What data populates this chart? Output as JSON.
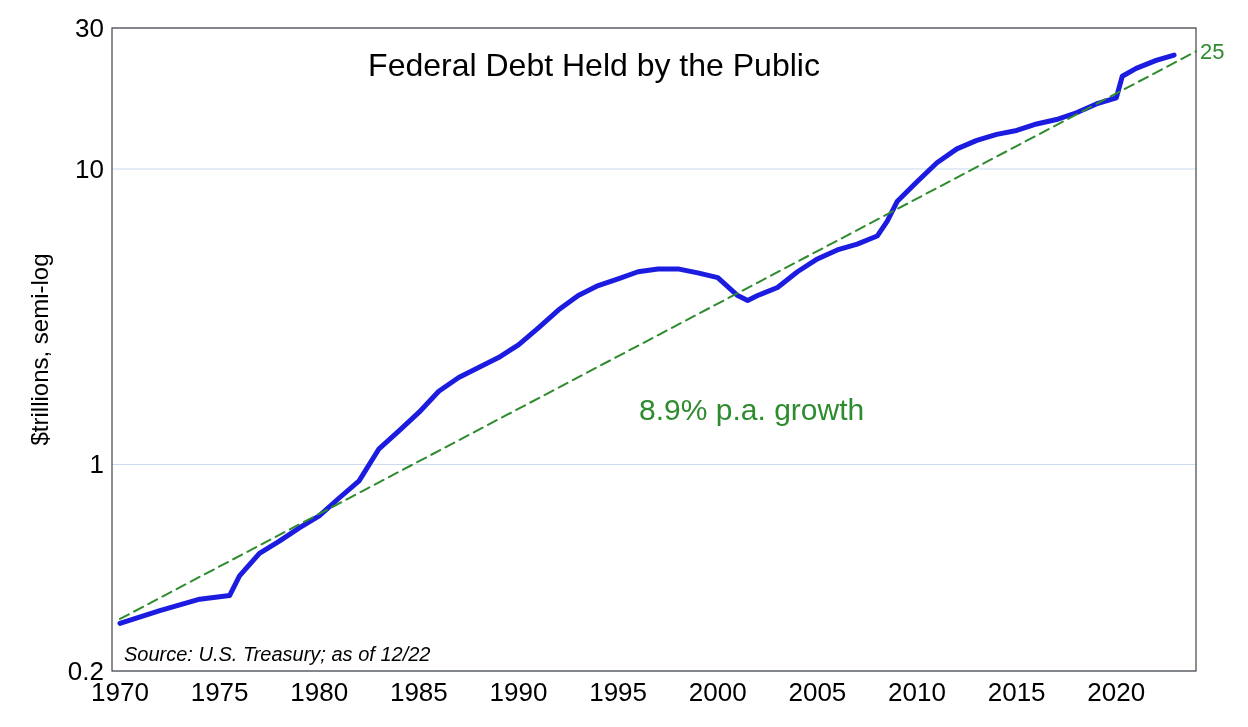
{
  "chart_data": {
    "type": "line",
    "title": "Federal Debt Held by the Public",
    "ylabel": "$trillions, semi-log",
    "log": "y",
    "grid": "y",
    "xlim": [
      1969.6,
      2024
    ],
    "xticks": [
      1970,
      1975,
      1980,
      1985,
      1990,
      1995,
      2000,
      2005,
      2010,
      2015,
      2020
    ],
    "ylim": [
      0.2,
      30
    ],
    "yticks": [
      0.2,
      1,
      10,
      30
    ],
    "series": [
      {
        "color": "#1c1ce0",
        "line_style": "solid",
        "x": [
          1970,
          1972,
          1974,
          1975.5,
          1976,
          1977,
          1978,
          1979,
          1980,
          1981,
          1982,
          1983,
          1984,
          1985,
          1986,
          1987,
          1988,
          1989,
          1990,
          1991,
          1992,
          1993,
          1994,
          1995,
          1996,
          1997,
          1998,
          1999,
          2000,
          2001,
          2001.5,
          2002,
          2003,
          2004,
          2005,
          2006,
          2007,
          2008,
          2008.5,
          2009,
          2010,
          2011,
          2012,
          2013,
          2014,
          2015,
          2016,
          2017,
          2018,
          2019,
          2020,
          2020.3,
          2021,
          2022,
          2022.9
        ],
        "values": [
          0.29,
          0.32,
          0.35,
          0.36,
          0.42,
          0.5,
          0.55,
          0.61,
          0.67,
          0.77,
          0.88,
          1.13,
          1.3,
          1.5,
          1.77,
          1.97,
          2.13,
          2.3,
          2.54,
          2.9,
          3.33,
          3.73,
          4.03,
          4.25,
          4.49,
          4.59,
          4.59,
          4.45,
          4.29,
          3.73,
          3.59,
          3.73,
          3.97,
          4.49,
          4.96,
          5.32,
          5.57,
          5.93,
          6.65,
          7.76,
          9.05,
          10.5,
          11.7,
          12.5,
          13.1,
          13.5,
          14.2,
          14.7,
          15.5,
          16.6,
          17.4,
          20.6,
          21.9,
          23.3,
          24.3
        ]
      },
      {
        "color": "#2e8b2e",
        "line_style": "dashed",
        "x": [
          1970,
          2024
        ],
        "values": [
          0.3,
          25
        ]
      }
    ],
    "annotations": [
      "8.9% p.a. growth",
      {
        "text": "25",
        "x": 2024,
        "y": 25
      },
      "Source:  U.S. Treasury; as of 12/22"
    ]
  }
}
